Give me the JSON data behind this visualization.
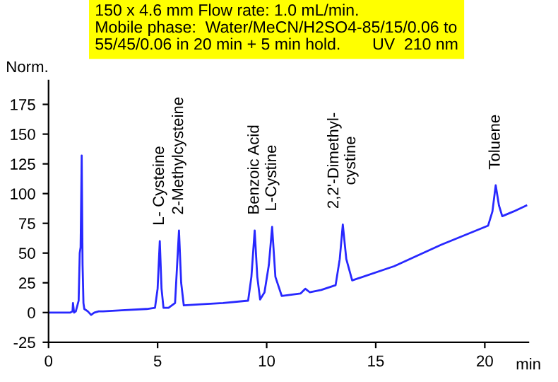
{
  "chart_data": {
    "type": "line",
    "xlabel": "min",
    "ylabel": "Norm.",
    "xlim": [
      0,
      22
    ],
    "ylim": [
      -25,
      195
    ],
    "xticks": [
      0,
      5,
      10,
      15,
      20
    ],
    "yticks": [
      -25,
      0,
      25,
      50,
      75,
      100,
      125,
      150,
      175
    ],
    "grid": false,
    "legend": false,
    "marker": "none",
    "line_style": "solid",
    "series": [
      {
        "color": "#2828ff",
        "x": [
          0,
          1.0,
          1.1,
          1.12,
          1.17,
          1.25,
          1.38,
          1.43,
          1.47,
          1.52,
          1.56,
          1.6,
          1.64,
          1.8,
          1.95,
          2.1,
          2.3,
          2.5,
          3.5,
          4.5,
          4.88,
          5.0,
          5.1,
          5.18,
          5.27,
          5.5,
          5.8,
          5.98,
          6.08,
          6.2,
          7,
          8,
          9.15,
          9.3,
          9.45,
          9.57,
          9.7,
          9.9,
          10.1,
          10.25,
          10.4,
          10.69,
          11.55,
          11.77,
          11.98,
          12.5,
          13.16,
          13.35,
          13.49,
          13.65,
          13.92,
          15.85,
          18.0,
          20.15,
          20.35,
          20.5,
          20.65,
          20.8,
          21.32,
          21.9
        ],
        "values": [
          0,
          0,
          1,
          8,
          0,
          1,
          10,
          50,
          55,
          132,
          40,
          8,
          3,
          1,
          -2,
          0,
          1,
          1,
          2,
          3,
          4,
          20,
          60,
          20,
          4,
          4,
          8,
          69,
          25,
          6,
          7,
          8,
          10,
          30,
          69,
          30,
          11,
          17,
          40,
          72,
          30,
          14,
          16,
          20,
          17,
          19,
          23,
          45,
          74,
          45,
          27,
          39,
          57,
          73,
          85,
          107,
          90,
          81,
          85,
          90
        ]
      }
    ],
    "annotations": [
      {
        "text": "L- Cysteine",
        "x": 5.1,
        "y": 60
      },
      {
        "text": "2-Methylcysteine",
        "x": 5.98,
        "y": 69
      },
      {
        "text": "Benzoic Acid",
        "x": 9.45,
        "y": 69
      },
      {
        "text": "L-Cystine",
        "x": 10.25,
        "y": 72
      },
      {
        "text": "2,2'-Dimethyl-\ncystine",
        "x": 13.49,
        "y": 74
      },
      {
        "text": "Toluene",
        "x": 20.5,
        "y": 107
      },
      "150 x 4.6 mm Flow rate: 1.0 mL/min.\nMobile phase:  Water/MeCN/H2SO4-85/15/0.06 to\n55/45/0.06 in 20 min + 5 min hold.       UV  210 nm"
    ]
  }
}
